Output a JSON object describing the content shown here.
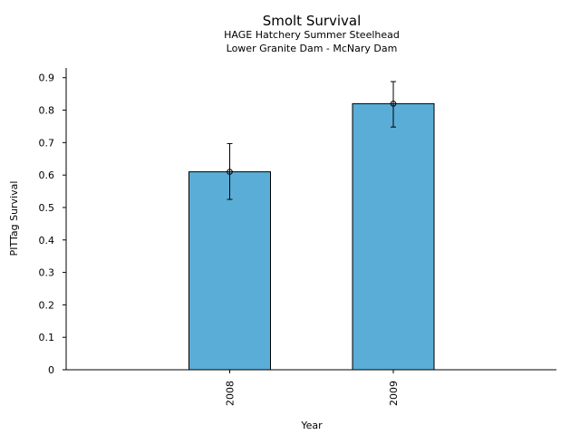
{
  "chart_data": {
    "type": "bar",
    "title": "Smolt Survival",
    "subtitle_lines": [
      "HAGE Hatchery Summer Steelhead",
      "Lower Granite Dam - McNary Dam"
    ],
    "xlabel": "Year",
    "ylabel": "PITTag Survival",
    "categories": [
      "2008",
      "2009"
    ],
    "values": [
      0.61,
      0.82
    ],
    "error_bars": [
      {
        "lower": 0.525,
        "upper": 0.697
      },
      {
        "lower": 0.748,
        "upper": 0.888
      }
    ],
    "ylim": [
      0,
      0.93
    ],
    "yticks": [
      {
        "value": 0,
        "label": "0"
      },
      {
        "value": 0.1,
        "label": "0.1"
      },
      {
        "value": 0.2,
        "label": "0.2"
      },
      {
        "value": 0.3,
        "label": "0.3"
      },
      {
        "value": 0.4,
        "label": "0.4"
      },
      {
        "value": 0.5,
        "label": "0.5"
      },
      {
        "value": 0.6,
        "label": "0.6"
      },
      {
        "value": 0.7,
        "label": "0.7"
      },
      {
        "value": 0.8,
        "label": "0.8"
      },
      {
        "value": 0.9,
        "label": "0.9"
      }
    ],
    "grid": false,
    "legend": "none",
    "colors": {
      "bar": "#5aadd6",
      "edge": "#000000"
    }
  }
}
